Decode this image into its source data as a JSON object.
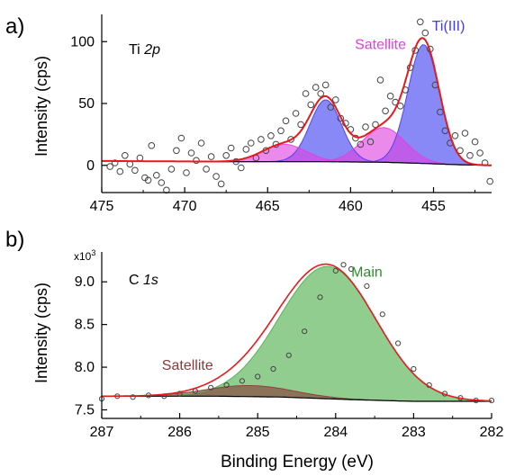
{
  "chart_data": [
    {
      "type": "line",
      "panel_label": "a)",
      "annotation": {
        "prefix": "Ti ",
        "suffix": "2p"
      },
      "xlabel": "",
      "ylabel": "Intensity (cps)",
      "xlim": [
        475,
        451.5
      ],
      "ylim": [
        -22,
        122
      ],
      "xticks": [
        475,
        470,
        465,
        460,
        455
      ],
      "yticks": [
        0,
        50,
        100
      ],
      "components": [
        {
          "name": "Ti(III)",
          "color": "#3f3ff0",
          "center": 455.6,
          "amplitude": 96,
          "width": 0.95,
          "label_at": [
            454.1,
            109
          ]
        },
        {
          "name": "",
          "color": "#3f3ff0",
          "center": 461.5,
          "amplitude": 50,
          "width": 0.95
        },
        {
          "name": "Satellite",
          "color": "#e040e0",
          "center": 458.0,
          "amplitude": 28,
          "width": 1.3,
          "label_at": [
            458.2,
            94
          ]
        },
        {
          "name": "",
          "color": "#e040e0",
          "center": 464.0,
          "amplitude": 14,
          "width": 1.3
        }
      ],
      "background": {
        "x": [
          474.5,
          468,
          462,
          458,
          455.5,
          453.5,
          451.5
        ],
        "y": [
          3.5,
          3,
          3,
          2.5,
          1.5,
          0.5,
          0
        ]
      },
      "series": [
        {
          "name": "",
          "values": [
            [
              474.5,
              -1
            ],
            [
              474.2,
              2
            ],
            [
              473.9,
              -5
            ],
            [
              473.6,
              8
            ],
            [
              473.3,
              1
            ],
            [
              473.0,
              -4
            ],
            [
              472.7,
              6
            ],
            [
              472.4,
              -10
            ],
            [
              472.2,
              -12
            ],
            [
              472.0,
              16
            ],
            [
              471.7,
              -8
            ],
            [
              471.4,
              -14
            ],
            [
              471.1,
              -20
            ],
            [
              470.8,
              -3
            ],
            [
              470.5,
              12
            ],
            [
              470.2,
              22
            ],
            [
              469.9,
              -6
            ],
            [
              469.6,
              10
            ],
            [
              469.3,
              4
            ],
            [
              469.0,
              18
            ],
            [
              468.7,
              -3
            ],
            [
              468.4,
              7
            ],
            [
              468.1,
              -9
            ],
            [
              467.8,
              -15
            ],
            [
              467.5,
              8
            ],
            [
              467.2,
              14
            ],
            [
              466.9,
              3
            ],
            [
              466.6,
              -2
            ],
            [
              466.3,
              13
            ],
            [
              466.0,
              18
            ],
            [
              465.7,
              6
            ],
            [
              465.4,
              21
            ],
            [
              465.1,
              12
            ],
            [
              464.8,
              24
            ],
            [
              464.5,
              17
            ],
            [
              464.2,
              28
            ],
            [
              463.9,
              36
            ],
            [
              463.6,
              21
            ],
            [
              463.3,
              42
            ],
            [
              463.0,
              33
            ],
            [
              462.7,
              58
            ],
            [
              462.4,
              49
            ],
            [
              462.1,
              63
            ],
            [
              461.8,
              58
            ],
            [
              461.5,
              65
            ],
            [
              461.2,
              47
            ],
            [
              460.9,
              53
            ],
            [
              460.6,
              38
            ],
            [
              460.3,
              34
            ],
            [
              460.0,
              29
            ],
            [
              459.7,
              22
            ],
            [
              459.4,
              17
            ],
            [
              459.1,
              31
            ],
            [
              458.8,
              19
            ],
            [
              458.5,
              33
            ],
            [
              458.2,
              69
            ],
            [
              457.9,
              44
            ],
            [
              457.6,
              56
            ],
            [
              457.3,
              51
            ],
            [
              457.0,
              48
            ],
            [
              456.7,
              61
            ],
            [
              456.4,
              79
            ],
            [
              456.1,
              93
            ],
            [
              455.8,
              116
            ],
            [
              455.5,
              107
            ],
            [
              455.2,
              94
            ],
            [
              454.9,
              65
            ],
            [
              454.6,
              43
            ],
            [
              454.3,
              28
            ],
            [
              454.0,
              18
            ],
            [
              453.7,
              24
            ],
            [
              453.4,
              12
            ],
            [
              453.1,
              26
            ],
            [
              452.8,
              8
            ],
            [
              452.5,
              19
            ],
            [
              452.2,
              10
            ],
            [
              451.9,
              2
            ],
            [
              451.6,
              -13
            ]
          ]
        }
      ]
    },
    {
      "type": "line",
      "panel_label": "b)",
      "annotation": {
        "prefix": "C ",
        "suffix": "1s"
      },
      "xlabel": "Binding Energy (eV)",
      "ylabel": "Intensity (cps)",
      "y_multiplier": "x10",
      "y_multiplier_exp": "3",
      "xlim": [
        287,
        282
      ],
      "ylim": [
        7.4,
        9.35
      ],
      "xticks": [
        "287",
        "286",
        "285",
        "284",
        "283",
        "282"
      ],
      "yticks": [
        "7.5",
        "8.0",
        "8.5",
        "9.0"
      ],
      "components": [
        {
          "name": "Main",
          "color": "#4daf4a",
          "center": 284.1,
          "amplitude": 1.55,
          "width": 0.62,
          "label_at": [
            283.6,
            9.06
          ]
        },
        {
          "name": "Satellite",
          "color": "#8b3a3a",
          "center": 285.1,
          "amplitude": 0.13,
          "width": 0.55,
          "label_at": [
            285.9,
            7.97
          ]
        }
      ],
      "background": {
        "x": [
          287,
          285.5,
          284.7,
          283.8,
          283,
          282
        ],
        "y": [
          7.66,
          7.66,
          7.65,
          7.62,
          7.6,
          7.6
        ]
      },
      "series": [
        {
          "name": "",
          "values": [
            [
              287.0,
              7.63
            ],
            [
              286.8,
              7.66
            ],
            [
              286.6,
              7.65
            ],
            [
              286.4,
              7.67
            ],
            [
              286.2,
              7.66
            ],
            [
              286.0,
              7.69
            ],
            [
              285.8,
              7.72
            ],
            [
              285.6,
              7.76
            ],
            [
              285.4,
              7.79
            ],
            [
              285.2,
              7.84
            ],
            [
              285.0,
              7.89
            ],
            [
              284.8,
              7.98
            ],
            [
              284.6,
              8.14
            ],
            [
              284.4,
              8.42
            ],
            [
              284.2,
              8.82
            ],
            [
              284.0,
              9.13
            ],
            [
              283.9,
              9.2
            ],
            [
              283.8,
              9.15
            ],
            [
              283.6,
              8.95
            ],
            [
              283.4,
              8.62
            ],
            [
              283.2,
              8.28
            ],
            [
              283.0,
              7.98
            ],
            [
              282.8,
              7.79
            ],
            [
              282.6,
              7.69
            ],
            [
              282.4,
              7.64
            ],
            [
              282.2,
              7.61
            ],
            [
              282.0,
              7.61
            ]
          ]
        }
      ]
    }
  ]
}
